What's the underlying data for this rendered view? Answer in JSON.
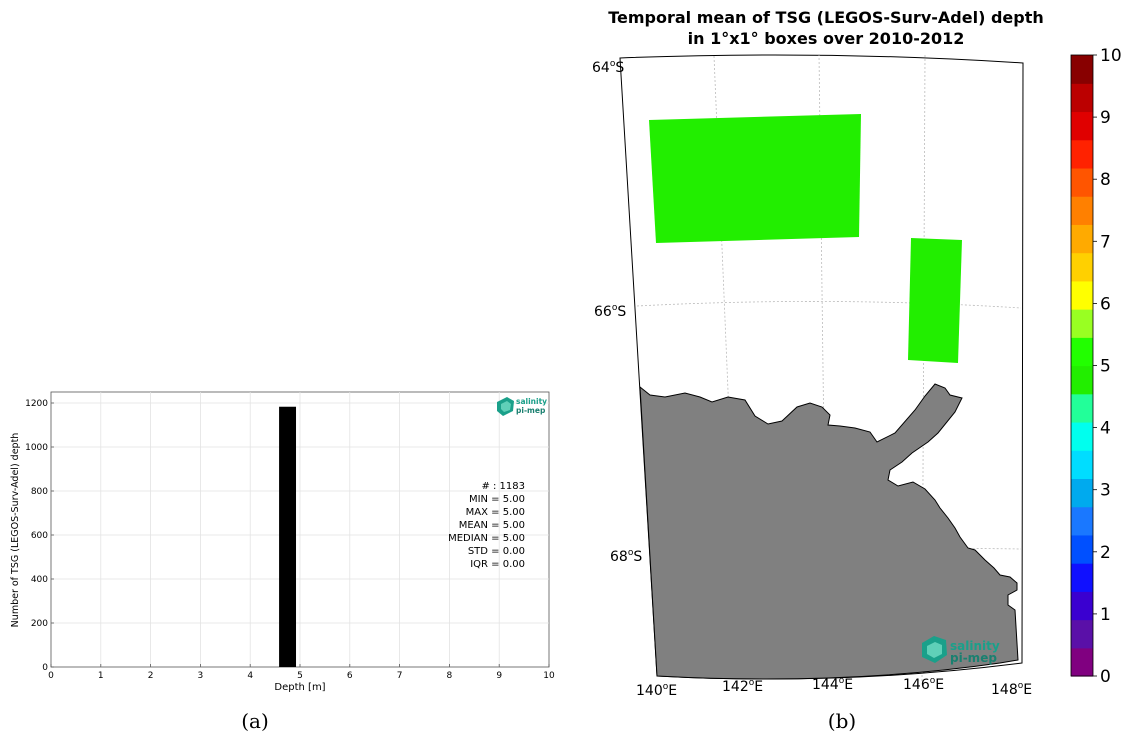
{
  "panel_labels": {
    "a": "(a)",
    "b": "(b)"
  },
  "colors": {
    "bar": "#000000",
    "land": "#808080",
    "cell": "#22ee00",
    "logo": "#1aa08a"
  },
  "logo": {
    "line1": "salinity",
    "line2": "pi-mep"
  },
  "stats": {
    "count": "# : 1183",
    "min": "MIN = 5.00",
    "max": "MAX =  5.00",
    "mean": "MEAN = 5.00",
    "median": "MEDIAN = 5.00",
    "std": "STD = 0.00",
    "iqr": "IQR = 0.00"
  },
  "map_labels": {
    "lat": [
      "64",
      "66",
      "68"
    ],
    "lon": [
      "140",
      "142",
      "144",
      "146",
      "148"
    ],
    "deg": "o",
    "south": "S",
    "east": "E"
  },
  "chart_data": [
    {
      "type": "bar",
      "title": "",
      "xlabel": "Depth [m]",
      "ylabel": "Number of TSG (LEGOS-Surv-Adel) depth",
      "xlim": [
        0,
        10
      ],
      "ylim": [
        0,
        1250
      ],
      "xticks": [
        "0",
        "1",
        "2",
        "3",
        "4",
        "5",
        "6",
        "7",
        "8",
        "9",
        "10"
      ],
      "yticks": [
        "0",
        "200",
        "400",
        "600",
        "800",
        "1000",
        "1200"
      ],
      "bars": [
        {
          "x0": 4.58,
          "x1": 4.92,
          "value": 1183
        }
      ],
      "grid": true
    },
    {
      "type": "heatmap",
      "title": "Temporal mean of TSG (LEGOS-Surv-Adel) depth",
      "subtitle": "in 1°x1° boxes over 2010-2012",
      "colorbar": {
        "ticks": [
          "0",
          "1",
          "2",
          "3",
          "4",
          "5",
          "6",
          "7",
          "8",
          "9",
          "10"
        ],
        "colors": [
          "#800080",
          "#5a10a8",
          "#3a00d0",
          "#1010ff",
          "#0050ff",
          "#1a78ff",
          "#00aaee",
          "#00ddff",
          "#00ffee",
          "#22ff99",
          "#22ee00",
          "#22ff00",
          "#99ff22",
          "#ffff00",
          "#ffd000",
          "#ffaa00",
          "#ff8000",
          "#ff5500",
          "#ff2200",
          "#e00000",
          "#bb0000",
          "#880000"
        ]
      },
      "lat_range": [
        -69.8,
        -64
      ],
      "lon_range": [
        140,
        148
      ],
      "cells": [
        {
          "lon": [
            140,
            144
          ],
          "lat": [
            -64.5,
            -65.5
          ],
          "value": 5
        },
        {
          "lon": [
            145.5,
            146.5
          ],
          "lat": [
            -65.5,
            -66.5
          ],
          "value": 5
        }
      ]
    }
  ]
}
